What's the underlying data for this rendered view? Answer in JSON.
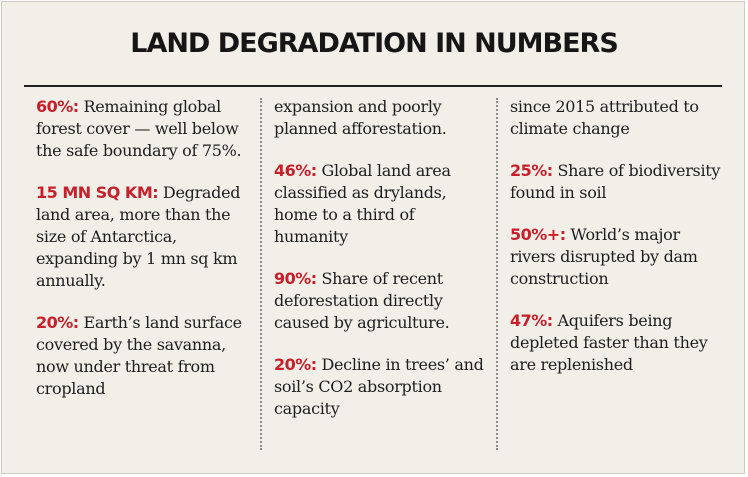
{
  "title": "LAND DEGRADATION IN NUMBERS",
  "columns": [
    [
      {
        "highlight": "60%:",
        "text": " Remaining global forest cover — well below the safe boundary of 75%."
      },
      {
        "highlight": "15 MN SQ KM:",
        "text": " Degraded land area, more than the size of Antarctica, expanding by 1 mn sq km annually."
      },
      {
        "highlight": "20%:",
        "text": " Earth’s land surface covered by the savanna, now under threat from cropland"
      }
    ],
    [
      {
        "highlight": "",
        "text": "expansion and poorly planned afforestation."
      },
      {
        "highlight": "46%:",
        "text": " Global land area classified as drylands, home to a third of humanity"
      },
      {
        "highlight": "90%:",
        "text": " Share of recent deforestation directly caused by agriculture."
      },
      {
        "highlight": "20%:",
        "text": " Decline in trees’ and soil’s CO2 absorption capacity"
      }
    ],
    [
      {
        "highlight": "",
        "text": "since 2015 attributed to climate change"
      },
      {
        "highlight": "25%:",
        "text": " Share of biodiversity found in soil"
      },
      {
        "highlight": "50%+:",
        "text": " World’s major rivers disrupted by dam construction"
      },
      {
        "highlight": "47%:",
        "text": " Aquifers being depleted faster than they are replenished"
      }
    ]
  ]
}
